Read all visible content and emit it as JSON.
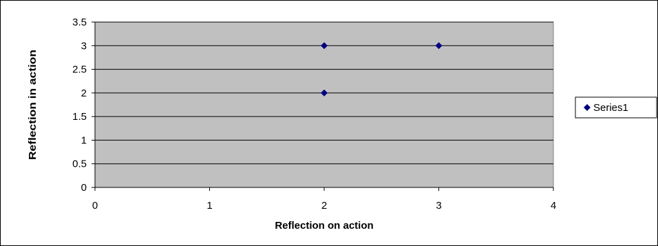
{
  "chart_data": {
    "type": "scatter",
    "title": "",
    "xlabel": "Reflection on action",
    "ylabel": "Reflection in action",
    "xlim": [
      0,
      4
    ],
    "ylim": [
      0,
      3.5
    ],
    "x_ticks": [
      "0",
      "1",
      "2",
      "3",
      "4"
    ],
    "y_ticks": [
      "0",
      "0.5",
      "1",
      "1.5",
      "2",
      "2.5",
      "3",
      "3.5"
    ],
    "grid": "horizontal",
    "legend_position": "right",
    "series": [
      {
        "name": "Series1",
        "marker": "diamond",
        "color": "#000080",
        "points": [
          {
            "x": 2,
            "y": 3
          },
          {
            "x": 2,
            "y": 2
          },
          {
            "x": 3,
            "y": 3
          }
        ]
      }
    ]
  },
  "colors": {
    "plot_background": "#c0c0c0",
    "gridline": "#000000",
    "frame": "#000000",
    "marker": "#000080"
  }
}
